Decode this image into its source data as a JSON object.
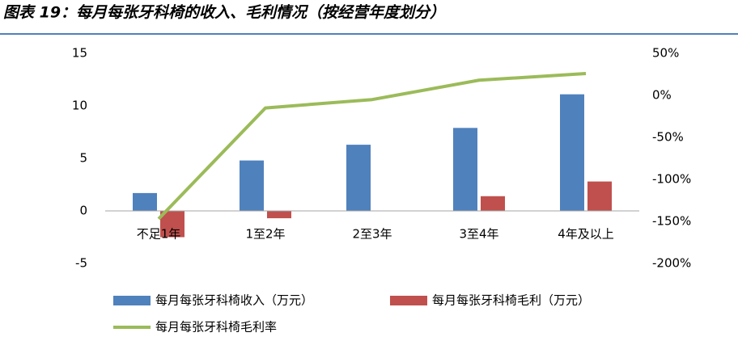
{
  "chart_data": {
    "type": "bar-line",
    "title": "图表 19：每月每张牙科椅的收入、毛利情况（按经营年度划分）",
    "categories": [
      "不足1年",
      "1至2年",
      "2至3年",
      "3至4年",
      "4年及以上"
    ],
    "series": [
      {
        "name": "每月每张牙科椅收入（万元）",
        "color": "#4f81bd",
        "type": "bar",
        "values": [
          1.7,
          4.8,
          6.3,
          7.9,
          11.1
        ]
      },
      {
        "name": "每月每张牙科椅毛利（万元）",
        "color": "#c0504d",
        "type": "bar",
        "values": [
          -2.5,
          -0.7,
          0,
          1.4,
          2.8
        ]
      },
      {
        "name": "每月每张牙科椅毛利率",
        "color": "#9bbb59",
        "type": "line",
        "axis": "y2",
        "values": [
          -147,
          -15,
          -5,
          18,
          26
        ]
      }
    ],
    "ylim": [
      -5,
      15
    ],
    "yticks": [
      -5,
      0,
      5,
      10,
      15
    ],
    "y2lim": [
      -200,
      50
    ],
    "y2ticks": [
      {
        "value": 50,
        "label": "50%"
      },
      {
        "value": 0,
        "label": "0%"
      },
      {
        "value": -50,
        "label": "-50%"
      },
      {
        "value": -100,
        "label": "-100%"
      },
      {
        "value": -150,
        "label": "-150%"
      },
      {
        "value": -200,
        "label": "-200%"
      }
    ]
  }
}
